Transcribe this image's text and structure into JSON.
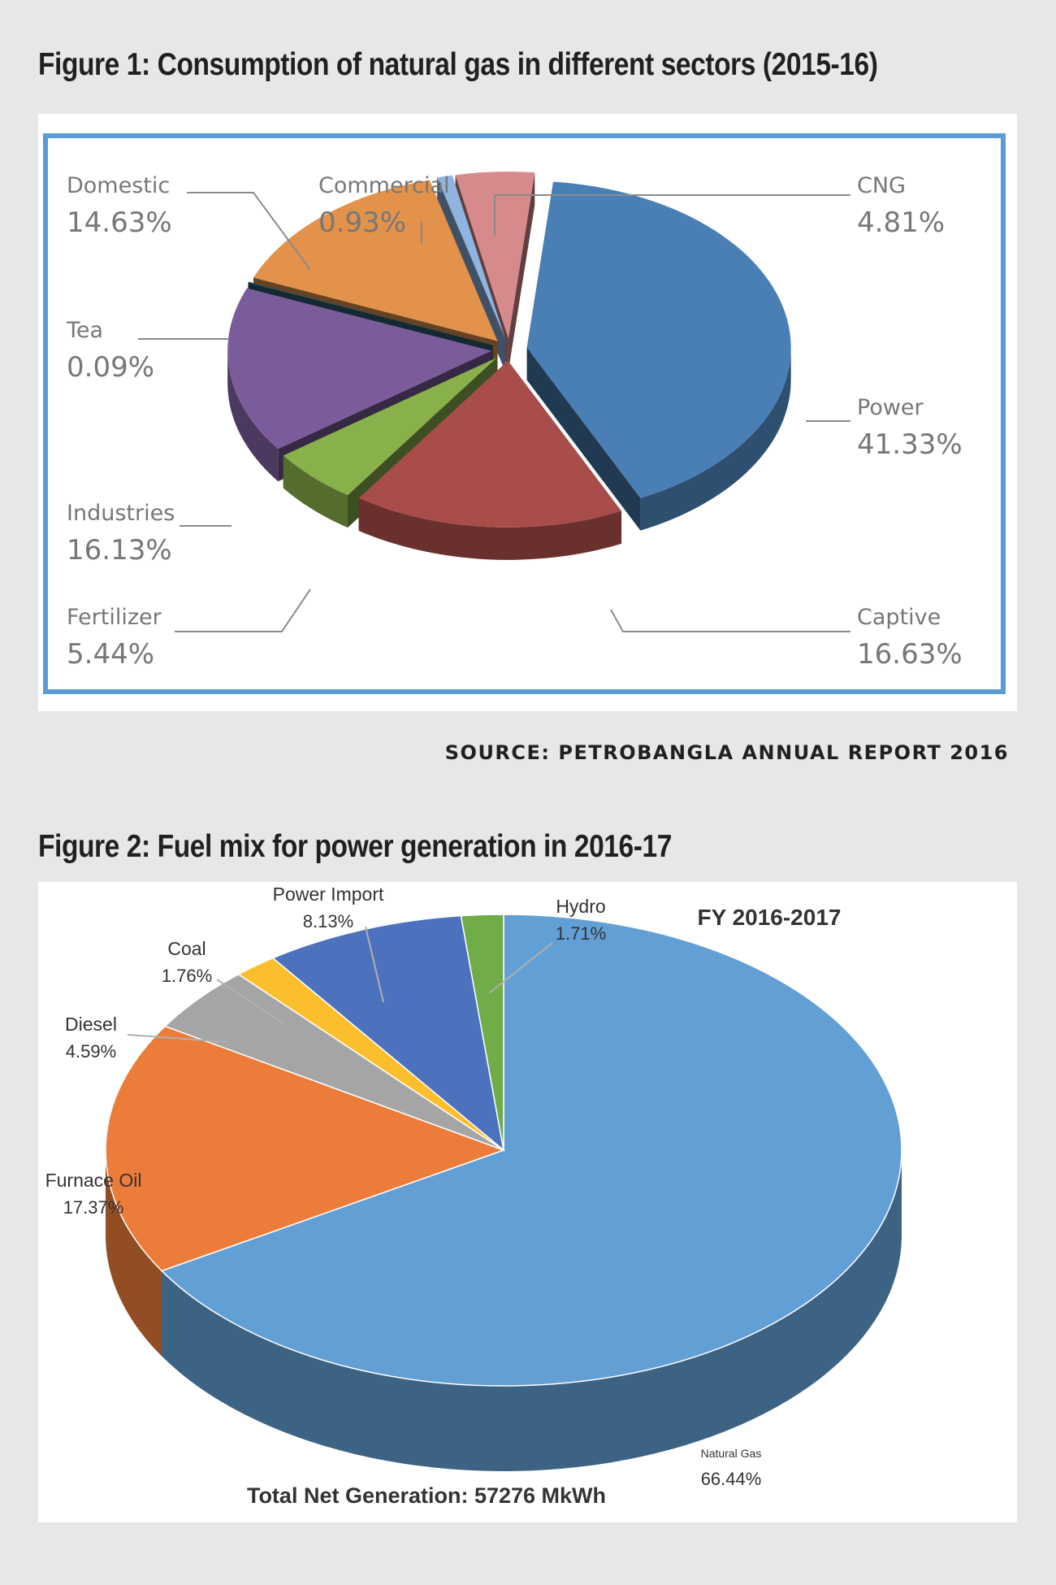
{
  "figure1": {
    "title": "Figure 1: Consumption of natural gas in different sectors (2015-16)",
    "source": "SOURCE: PETROBANGLA ANNUAL REPORT 2016"
  },
  "figure2": {
    "title": "Figure 2: Fuel mix for power generation in 2016-17"
  },
  "chart_data": [
    {
      "type": "pie",
      "style": "3d-exploded",
      "categories": [
        "Power",
        "Captive",
        "Fertilizer",
        "Industries",
        "Tea",
        "Domestic",
        "Commercial",
        "CNG"
      ],
      "values": [
        41.33,
        16.63,
        5.44,
        16.13,
        0.09,
        14.63,
        0.93,
        4.81
      ],
      "value_labels": [
        "41.33%",
        "16.63%",
        "5.44%",
        "16.13%",
        "0.09%",
        "14.63%",
        "0.93%",
        "4.81%"
      ],
      "colors": [
        "#4a7fb5",
        "#a94d4a",
        "#88b04b",
        "#7a5c9a",
        "#2f5b6e",
        "#e2924a",
        "#8fb4e0",
        "#d78a8c"
      ],
      "legend": "none"
    },
    {
      "type": "pie",
      "style": "3d",
      "title": "FY 2016-2017",
      "footer": "Total Net Generation: 57276 MkWh",
      "categories": [
        "Natural Gas",
        "Furnace Oil",
        "Diesel",
        "Coal",
        "Power Import",
        "Hydro"
      ],
      "values": [
        66.44,
        17.37,
        4.59,
        1.76,
        8.13,
        1.71
      ],
      "value_labels": [
        "66.44%",
        "17.37%",
        "4.59%",
        "1.76%",
        "8.13%",
        "1.71%"
      ],
      "colors": [
        "#629fd5",
        "#ec7c3a",
        "#a5a5a5",
        "#fbbf2d",
        "#4d72bd",
        "#70ac47"
      ],
      "legend": "none"
    }
  ]
}
